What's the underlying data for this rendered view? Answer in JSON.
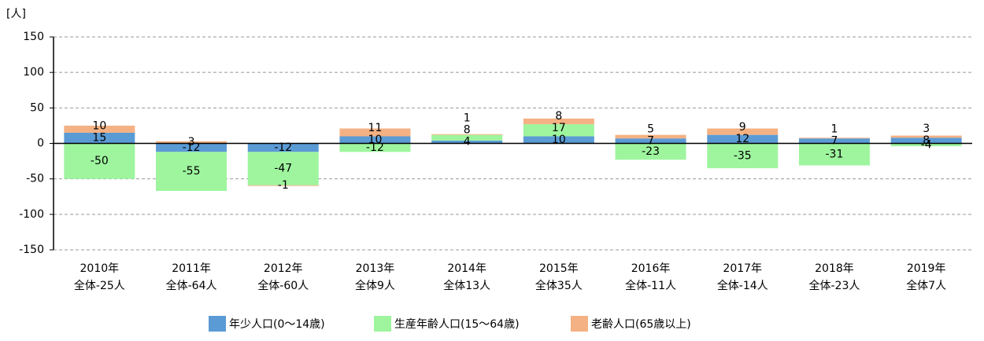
{
  "chart_data": {
    "type": "bar",
    "stacked": true,
    "y_unit": "[人]",
    "categories": [
      "2010年",
      "2011年",
      "2012年",
      "2013年",
      "2014年",
      "2015年",
      "2016年",
      "2017年",
      "2018年",
      "2019年"
    ],
    "totals": [
      "全体-25人",
      "全体-64人",
      "全体-60人",
      "全体9人",
      "全体13人",
      "全体35人",
      "全体-11人",
      "全体-14人",
      "全体-23人",
      "全体7人"
    ],
    "series": [
      {
        "name": "年少人口(0～14歳)",
        "color": "#5b9bd5",
        "values": [
          15,
          -12,
          -12,
          10,
          4,
          10,
          7,
          12,
          7,
          8
        ]
      },
      {
        "name": "生産年齢人口(15～64歳)",
        "color": "#9ef59e",
        "values": [
          -50,
          -55,
          -47,
          -12,
          8,
          17,
          -23,
          -35,
          -31,
          -4
        ]
      },
      {
        "name": "老齢人口(65歳以上)",
        "color": "#f4b183",
        "values": [
          10,
          3,
          -1,
          11,
          1,
          8,
          5,
          9,
          1,
          3
        ]
      }
    ],
    "ylim": [
      -150,
      150
    ],
    "yticks": [
      150,
      100,
      50,
      0,
      -50,
      -100,
      -150
    ],
    "grid": true,
    "legend": "bottom"
  }
}
